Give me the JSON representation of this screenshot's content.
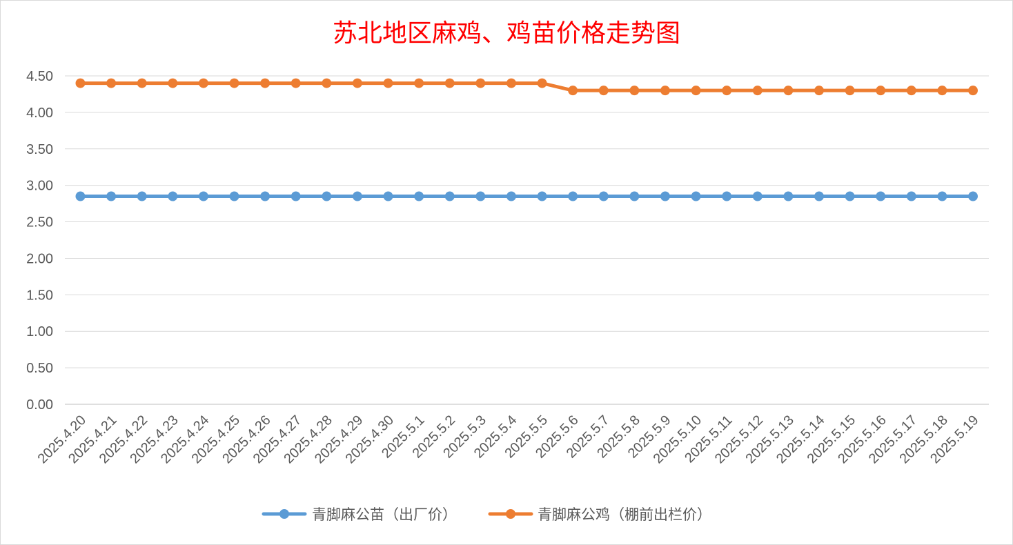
{
  "chart_data": {
    "type": "line",
    "title": "苏北地区麻鸡、鸡苗价格走势图",
    "xlabel": "",
    "ylabel": "",
    "ylim": [
      0,
      4.5
    ],
    "y_ticks": [
      "0.00",
      "0.50",
      "1.00",
      "1.50",
      "2.00",
      "2.50",
      "3.00",
      "3.50",
      "4.00",
      "4.50"
    ],
    "grid": "horizontal",
    "legend_position": "bottom",
    "categories": [
      "2025.4.20",
      "2025.4.21",
      "2025.4.22",
      "2025.4.23",
      "2025.4.24",
      "2025.4.25",
      "2025.4.26",
      "2025.4.27",
      "2025.4.28",
      "2025.4.29",
      "2025.4.30",
      "2025.5.1",
      "2025.5.2",
      "2025.5.3",
      "2025.5.4",
      "2025.5.5",
      "2025.5.6",
      "2025.5.7",
      "2025.5.8",
      "2025.5.9",
      "2025.5.10",
      "2025.5.11",
      "2025.5.12",
      "2025.5.13",
      "2025.5.14",
      "2025.5.15",
      "2025.5.16",
      "2025.5.17",
      "2025.5.18",
      "2025.5.19"
    ],
    "series": [
      {
        "name": "青脚麻公苗（出厂价）",
        "color": "#5b9bd5",
        "values": [
          2.85,
          2.85,
          2.85,
          2.85,
          2.85,
          2.85,
          2.85,
          2.85,
          2.85,
          2.85,
          2.85,
          2.85,
          2.85,
          2.85,
          2.85,
          2.85,
          2.85,
          2.85,
          2.85,
          2.85,
          2.85,
          2.85,
          2.85,
          2.85,
          2.85,
          2.85,
          2.85,
          2.85,
          2.85,
          2.85
        ]
      },
      {
        "name": "青脚麻公鸡（棚前出栏价）",
        "color": "#ed7d31",
        "values": [
          4.4,
          4.4,
          4.4,
          4.4,
          4.4,
          4.4,
          4.4,
          4.4,
          4.4,
          4.4,
          4.4,
          4.4,
          4.4,
          4.4,
          4.4,
          4.4,
          4.3,
          4.3,
          4.3,
          4.3,
          4.3,
          4.3,
          4.3,
          4.3,
          4.3,
          4.3,
          4.3,
          4.3,
          4.3,
          4.3
        ]
      }
    ]
  }
}
